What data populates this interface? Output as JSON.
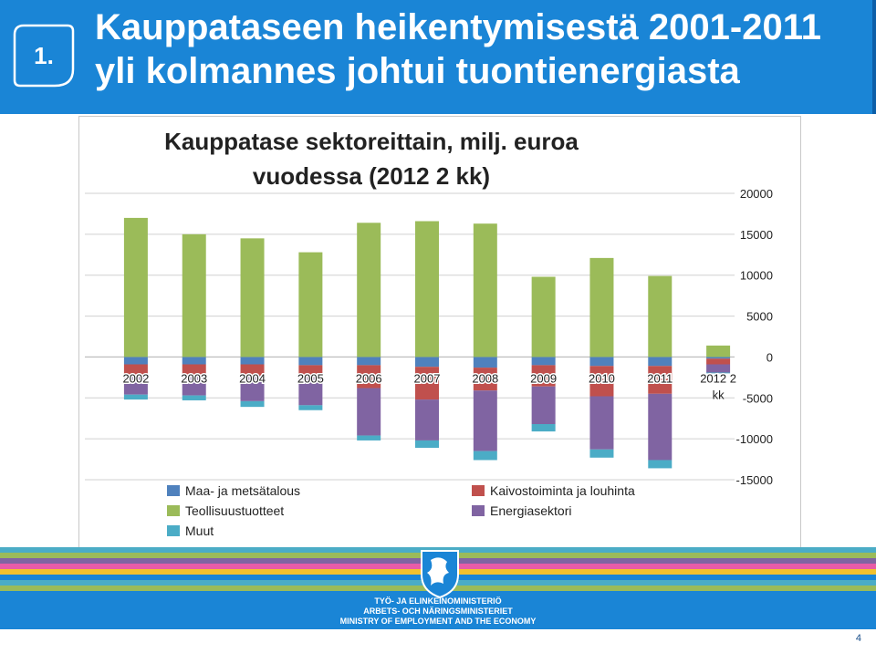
{
  "slide": {
    "number": "1.",
    "title_line1": "Kauppataseen heikentymisestä 2001-2011",
    "title_line2": "yli kolmannes johtui tuontienergiasta",
    "page": "4"
  },
  "footer": {
    "ministry_fi": "TYÖ- JA ELINKEINOMINISTERIÖ",
    "ministry_sv": "ARBETS- OCH NÄRINGSMINISTERIET",
    "ministry_en": "MINISTRY OF EMPLOYMENT AND THE ECONOMY"
  },
  "colors": {
    "header": "#1a85d6",
    "maa": "#4f81bd",
    "kaivos": "#c0504d",
    "teollisuus": "#9bbb59",
    "energia": "#8064a2",
    "muut": "#4bacc6"
  },
  "chart_data": {
    "type": "bar",
    "stacked": true,
    "title_line1": "Kauppatase sektoreittain, milj. euroa",
    "title_line2": "vuodessa (2012 2 kk)",
    "categories": [
      "2002",
      "2003",
      "2004",
      "2005",
      "2006",
      "2007",
      "2008",
      "2009",
      "2010",
      "2011",
      "2012 2 kk"
    ],
    "ylim": [
      -15000,
      20000
    ],
    "yticks": [
      "20000",
      "15000",
      "10000",
      "5000",
      "0",
      "-5000",
      "-10000",
      "-15000"
    ],
    "grid": true,
    "legend_position": "bottom",
    "series": [
      {
        "name": "Maa- ja metsätalous",
        "color": "#4f81bd",
        "values": [
          -900,
          -900,
          -900,
          -1000,
          -1000,
          -1200,
          -1300,
          -1000,
          -1100,
          -1100,
          -200
        ]
      },
      {
        "name": "Kaivostoiminta ja louhinta",
        "color": "#c0504d",
        "values": [
          -1300,
          -1300,
          -1400,
          -1500,
          -2800,
          -4000,
          -2800,
          -2600,
          -3700,
          -3400,
          -700
        ]
      },
      {
        "name": "Teollisuustuotteet",
        "color": "#9bbb59",
        "values": [
          17000,
          15000,
          14500,
          12800,
          16400,
          16600,
          16300,
          9800,
          12100,
          9900,
          1400
        ]
      },
      {
        "name": "Energiasektori",
        "color": "#8064a2",
        "values": [
          -2400,
          -2500,
          -3100,
          -3400,
          -5800,
          -5000,
          -7400,
          -4600,
          -6500,
          -8100,
          -1000
        ]
      },
      {
        "name": "Muut",
        "color": "#4bacc6",
        "values": [
          -600,
          -600,
          -700,
          -600,
          -600,
          -900,
          -1100,
          -900,
          -1000,
          -1000,
          -100
        ]
      }
    ]
  }
}
